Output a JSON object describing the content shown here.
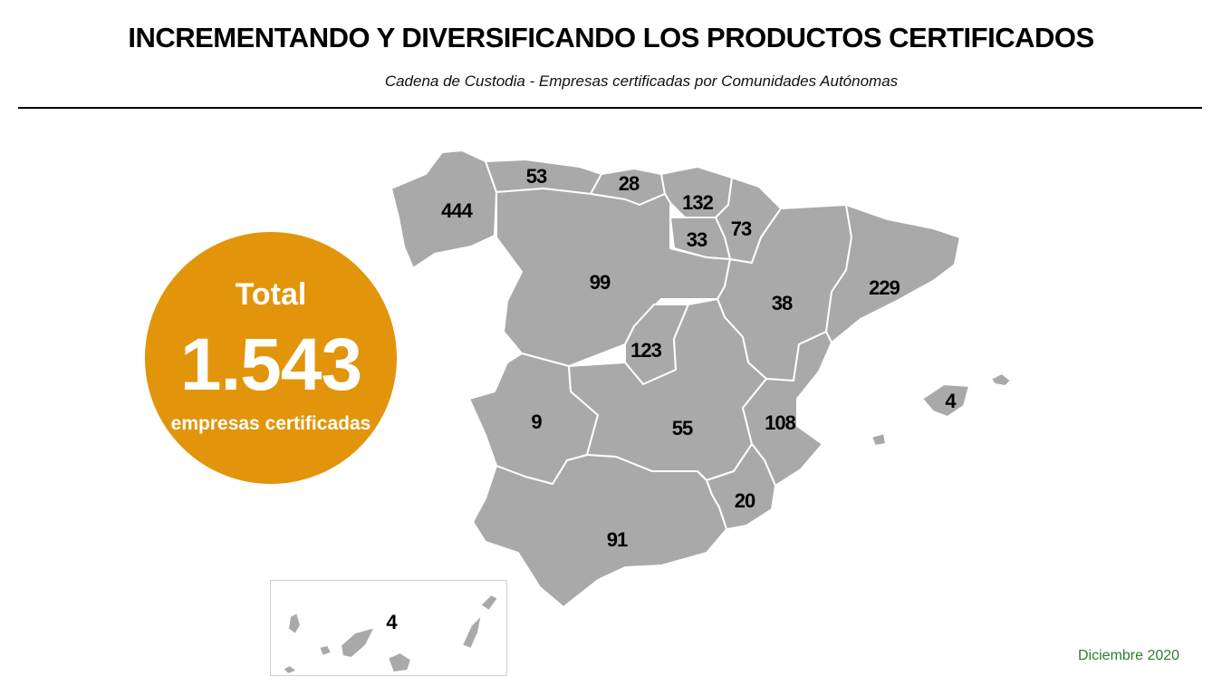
{
  "header": {
    "title": "INCREMENTANDO Y DIVERSIFICANDO LOS PRODUCTOS CERTIFICADOS",
    "subtitle": "Cadena de Custodia -  Empresas certificadas por Comunidades Autónomas"
  },
  "total": {
    "label": "Total",
    "value": "1.543",
    "caption": "empresas certificadas",
    "color": "#e2950a"
  },
  "map": {
    "fill_color": "#a9a9a9",
    "border_color": "#ffffff",
    "regions": [
      {
        "name": "Galicia",
        "value": "444"
      },
      {
        "name": "Asturias",
        "value": "53"
      },
      {
        "name": "Cantabria",
        "value": "28"
      },
      {
        "name": "País Vasco",
        "value": "132"
      },
      {
        "name": "Navarra",
        "value": "73"
      },
      {
        "name": "La Rioja",
        "value": "33"
      },
      {
        "name": "Castilla y León",
        "value": "99"
      },
      {
        "name": "Aragón",
        "value": "38"
      },
      {
        "name": "Cataluña",
        "value": "229"
      },
      {
        "name": "Madrid",
        "value": "123"
      },
      {
        "name": "Extremadura",
        "value": "9"
      },
      {
        "name": "Castilla-La Mancha",
        "value": "55"
      },
      {
        "name": "Comunidad Valenciana",
        "value": "108"
      },
      {
        "name": "Islas Baleares",
        "value": "4"
      },
      {
        "name": "Murcia",
        "value": "20"
      },
      {
        "name": "Andalucía",
        "value": "91"
      },
      {
        "name": "Canarias",
        "value": "4"
      }
    ]
  },
  "footer": {
    "date": "Diciembre 2020",
    "color": "#2e7d32"
  }
}
